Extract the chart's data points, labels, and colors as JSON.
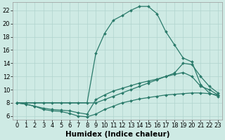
{
  "line_color": "#2a7a6a",
  "bg_color": "#ceeae4",
  "grid_color": "#b0d4ce",
  "xlabel": "Humidex (Indice chaleur)",
  "xlabel_fontsize": 7.5,
  "tick_fontsize": 6,
  "xlim": [
    -0.5,
    23.5
  ],
  "ylim": [
    5.5,
    23.2
  ],
  "yticks": [
    6,
    8,
    10,
    12,
    14,
    16,
    18,
    20,
    22
  ],
  "xticks": [
    0,
    1,
    2,
    3,
    4,
    5,
    6,
    7,
    8,
    9,
    10,
    11,
    12,
    13,
    14,
    15,
    16,
    17,
    18,
    19,
    20,
    21,
    22,
    23
  ],
  "curves": [
    {
      "x": [
        0,
        1,
        2,
        3,
        4,
        5,
        6,
        7,
        8,
        9,
        10,
        11,
        12,
        13,
        14,
        15,
        16,
        17,
        18,
        19,
        20,
        21,
        22,
        23
      ],
      "y": [
        8,
        8,
        8,
        8,
        8,
        8,
        8,
        8,
        8,
        15.5,
        18.5,
        20.5,
        21.2,
        22.0,
        22.6,
        22.6,
        21.5,
        18.8,
        16.8,
        14.8,
        14.2,
        10.8,
        9.5,
        9.0
      ]
    },
    {
      "x": [
        0,
        9,
        10,
        11,
        12,
        13,
        14,
        15,
        16,
        17,
        18,
        19,
        20,
        21,
        22,
        23
      ],
      "y": [
        8,
        8,
        8.5,
        9.0,
        9.5,
        10.0,
        10.5,
        11.0,
        11.5,
        12.0,
        12.5,
        14.0,
        13.8,
        12.0,
        10.5,
        9.5
      ]
    },
    {
      "x": [
        0,
        1,
        2,
        3,
        4,
        5,
        6,
        7,
        8,
        9,
        10,
        11,
        12,
        13,
        14,
        15,
        16,
        17,
        18,
        19,
        20,
        21,
        22,
        23
      ],
      "y": [
        8,
        7.8,
        7.5,
        7.2,
        7.0,
        6.9,
        6.8,
        6.5,
        6.3,
        8.5,
        9.2,
        9.8,
        10.2,
        10.6,
        11.0,
        11.3,
        11.6,
        12.0,
        12.3,
        12.6,
        12.0,
        10.5,
        10.0,
        9.2
      ]
    },
    {
      "x": [
        0,
        1,
        2,
        3,
        4,
        5,
        6,
        7,
        8,
        9,
        10,
        11,
        12,
        13,
        14,
        15,
        16,
        17,
        18,
        19,
        20,
        21,
        22,
        23
      ],
      "y": [
        8,
        7.8,
        7.5,
        7.0,
        6.8,
        6.7,
        6.4,
        6.0,
        5.9,
        6.3,
        7.0,
        7.5,
        8.0,
        8.3,
        8.6,
        8.8,
        9.0,
        9.2,
        9.3,
        9.4,
        9.5,
        9.5,
        9.4,
        9.2
      ]
    }
  ]
}
